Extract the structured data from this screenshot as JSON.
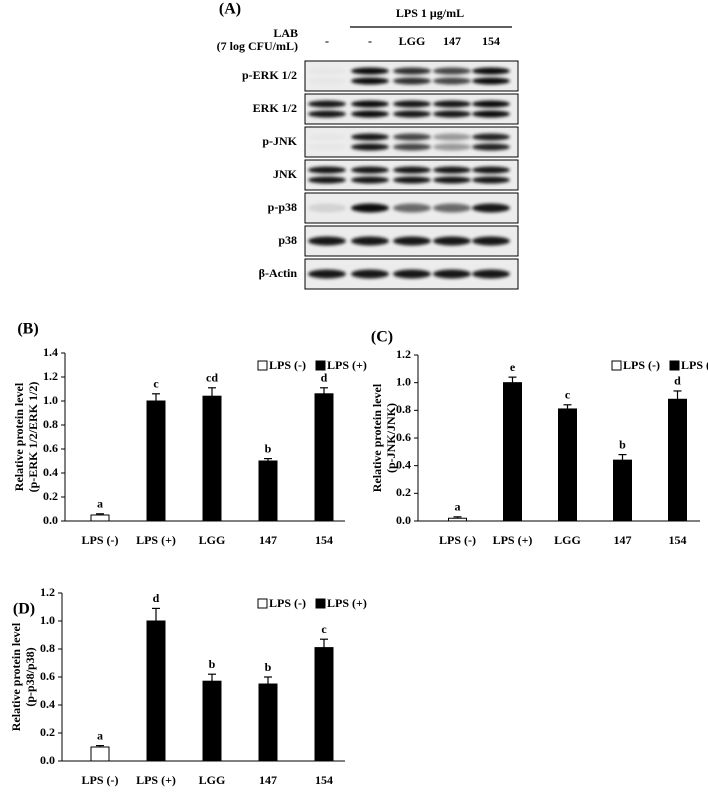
{
  "blot": {
    "panel": "(A)",
    "treatment": "LPS 1 μg/mL",
    "row_header": [
      "LAB",
      "(7 log CFU/mL)"
    ],
    "columns": [
      "-",
      "-",
      "LGG",
      "147",
      "154"
    ],
    "rows": [
      "p-ERK 1/2",
      "ERK 1/2",
      "p-JNK",
      "JNK",
      "p-p38",
      "p38",
      "β-Actin"
    ]
  },
  "chart_data": [
    {
      "type": "bar",
      "panel": "(B)",
      "ylabel": [
        "Relative protein level",
        "(p-ERK 1/2/ERK 1/2)"
      ],
      "categories": [
        "LPS (-)",
        "LPS (+)",
        "LGG",
        "147",
        "154"
      ],
      "series": [
        {
          "name": "LPS (-)",
          "color": "#ffffff",
          "values": [
            0.05,
            null,
            null,
            null,
            null
          ],
          "errors": [
            0.01,
            null,
            null,
            null,
            null
          ]
        },
        {
          "name": "LPS (+)",
          "color": "#000000",
          "values": [
            null,
            1.0,
            1.04,
            0.5,
            1.06
          ],
          "errors": [
            null,
            0.06,
            0.07,
            0.02,
            0.05
          ]
        }
      ],
      "letters": [
        "a",
        "c",
        "cd",
        "b",
        "d"
      ],
      "ylim": [
        0,
        1.4
      ],
      "yticks": [
        {
          "value": 0,
          "label": "0.0"
        },
        0.2,
        0.4,
        0.6,
        0.8,
        {
          "value": 1,
          "label": "1.0"
        },
        1.2,
        1.4
      ],
      "legend": "upper right"
    },
    {
      "type": "bar",
      "panel": "(C)",
      "ylabel": [
        "Relative protein level",
        "(p-JNK/JNK)"
      ],
      "categories": [
        "LPS (-)",
        "LPS (+)",
        "LGG",
        "147",
        "154"
      ],
      "series": [
        {
          "name": "LPS (-)",
          "color": "#ffffff",
          "values": [
            0.02,
            null,
            null,
            null,
            null
          ],
          "errors": [
            0.01,
            null,
            null,
            null,
            null
          ]
        },
        {
          "name": "LPS (+)",
          "color": "#000000",
          "values": [
            null,
            1.0,
            0.81,
            0.44,
            0.88
          ],
          "errors": [
            null,
            0.04,
            0.03,
            0.04,
            0.06
          ]
        }
      ],
      "letters": [
        "a",
        "e",
        "c",
        "b",
        "d"
      ],
      "ylim": [
        0,
        1.2
      ],
      "yticks": [
        {
          "value": 0,
          "label": "0.0"
        },
        0.2,
        0.4,
        0.6,
        0.8,
        {
          "value": 1,
          "label": "1.0"
        },
        1.2
      ],
      "legend": "upper right"
    },
    {
      "type": "bar",
      "panel": "(D)",
      "ylabel": [
        "Relative protein level",
        "(p-p38/p38)"
      ],
      "categories": [
        "LPS (-)",
        "LPS (+)",
        "LGG",
        "147",
        "154"
      ],
      "series": [
        {
          "name": "LPS (-)",
          "color": "#ffffff",
          "values": [
            0.1,
            null,
            null,
            null,
            null
          ],
          "errors": [
            0.01,
            null,
            null,
            null,
            null
          ]
        },
        {
          "name": "LPS (+)",
          "color": "#000000",
          "values": [
            null,
            1.0,
            0.57,
            0.55,
            0.81
          ],
          "errors": [
            null,
            0.09,
            0.05,
            0.05,
            0.06
          ]
        }
      ],
      "letters": [
        "a",
        "d",
        "b",
        "b",
        "c"
      ],
      "ylim": [
        0,
        1.2
      ],
      "yticks": [
        {
          "value": 0,
          "label": "0.0"
        },
        0.2,
        0.4,
        0.6,
        0.8,
        {
          "value": 1,
          "label": "1.0"
        },
        1.2
      ],
      "legend": "upper right"
    }
  ]
}
